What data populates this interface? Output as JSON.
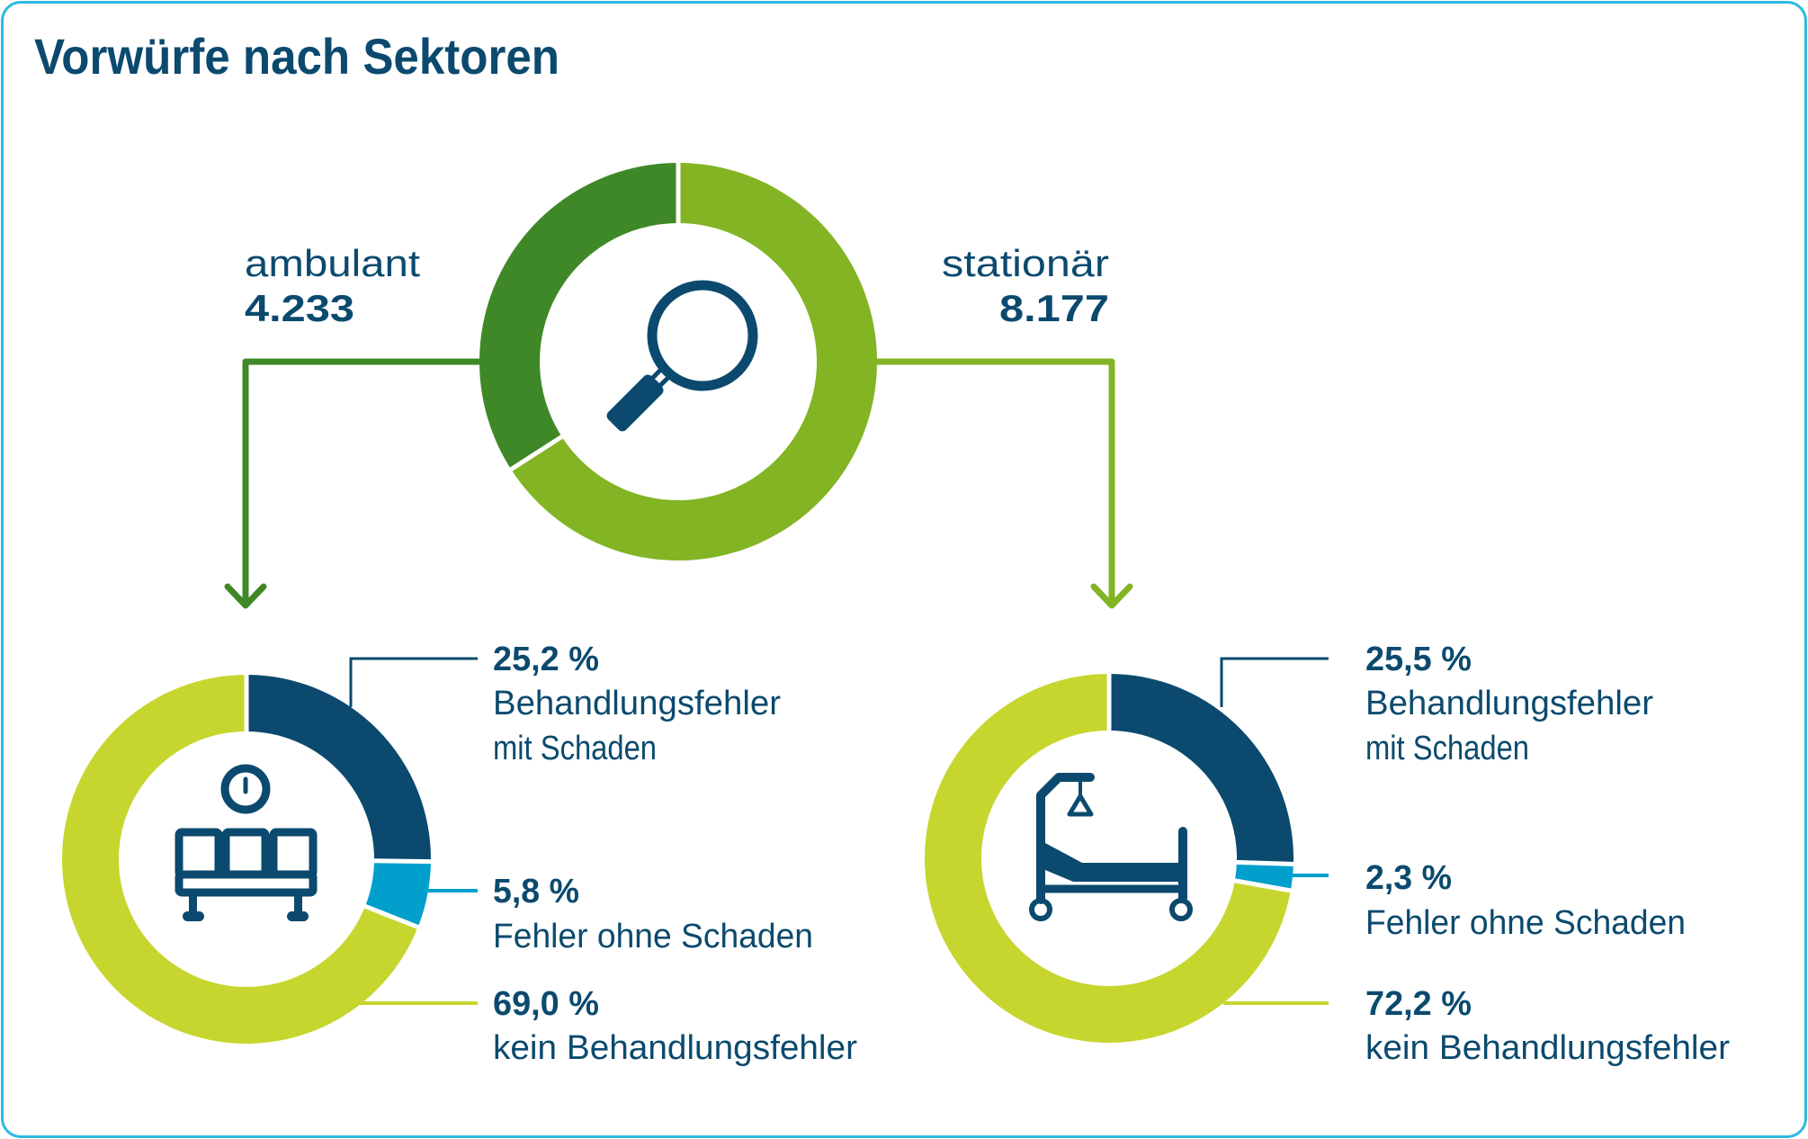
{
  "title": "Vorwürfe nach Sektoren",
  "colors": {
    "text": "#0B4A6E",
    "border": "#2BBBE0",
    "ambulant": "#3F8827",
    "stationaer": "#82B424",
    "mit_schaden": "#0B4A6E",
    "ohne_schaden": "#009FCC",
    "kein_fehler": "#C6D62E",
    "icon": "#0B4A6E"
  },
  "sectors": {
    "ambulant": {
      "label": "ambulant",
      "count_text": "4.233",
      "icon": "waiting-room-bench-icon"
    },
    "stationaer": {
      "label": "stationär",
      "count_text": "8.177",
      "icon": "hospital-bed-icon"
    }
  },
  "center_icon": "magnifier-icon",
  "chart_data": [
    {
      "type": "pie",
      "title": "Vorwürfe nach Sektoren",
      "donut": true,
      "categories": [
        "ambulant",
        "stationär"
      ],
      "values": [
        4233,
        8177
      ],
      "colors": [
        "#3F8827",
        "#82B424"
      ],
      "start": "top",
      "direction": "counterclockwise-for-first"
    },
    {
      "type": "pie",
      "title": "ambulant",
      "donut": true,
      "categories": [
        "Behandlungsfehler mit Schaden",
        "Fehler ohne Schaden",
        "kein Behandlungsfehler"
      ],
      "values": [
        25.2,
        5.8,
        69.0
      ],
      "labels": [
        "25,2 %",
        "5,8 %",
        "69,0 %"
      ],
      "colors": [
        "#0B4A6E",
        "#009FCC",
        "#C6D62E"
      ],
      "unit": "%"
    },
    {
      "type": "pie",
      "title": "stationär",
      "donut": true,
      "categories": [
        "Behandlungsfehler mit Schaden",
        "Fehler ohne Schaden",
        "kein Behandlungsfehler"
      ],
      "values": [
        25.5,
        2.3,
        72.2
      ],
      "labels": [
        "25,5 %",
        "2,3 %",
        "72,2 %"
      ],
      "colors": [
        "#0B4A6E",
        "#009FCC",
        "#C6D62E"
      ],
      "unit": "%"
    }
  ],
  "legend": {
    "ambulant": [
      {
        "value": "25,2 %",
        "lines": [
          "Behandlungsfehler",
          "mit Schaden"
        ]
      },
      {
        "value": "5,8 %",
        "lines": [
          "Fehler ohne Schaden"
        ]
      },
      {
        "value": "69,0 %",
        "lines": [
          "kein Behandlungsfehler"
        ]
      }
    ],
    "stationaer": [
      {
        "value": "25,5 %",
        "lines": [
          "Behandlungsfehler",
          "mit Schaden"
        ]
      },
      {
        "value": "2,3 %",
        "lines": [
          "Fehler ohne Schaden"
        ]
      },
      {
        "value": "72,2 %",
        "lines": [
          "kein Behandlungsfehler"
        ]
      }
    ]
  }
}
